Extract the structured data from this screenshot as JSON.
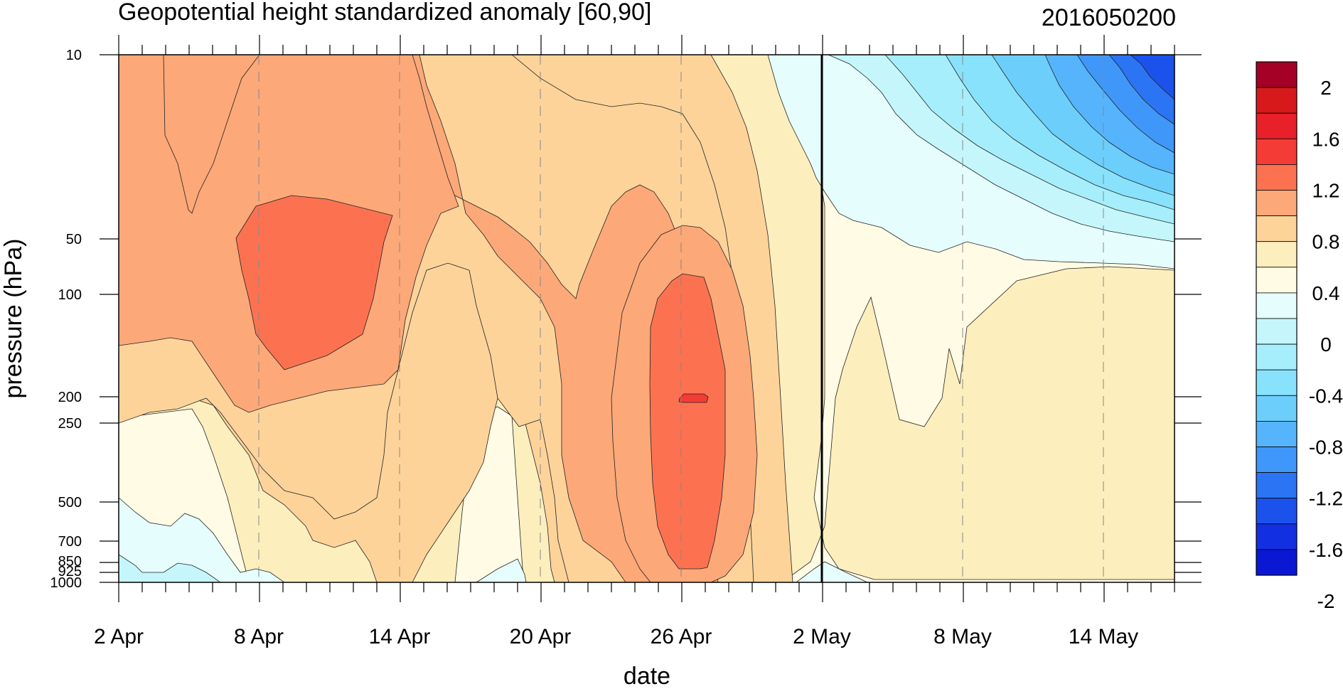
{
  "chart_data": {
    "type": "contour",
    "title": "Geopotential height standardized anomaly [60,90]",
    "subtitle": "2016050200",
    "xlabel": "date",
    "ylabel": "pressure (hPa)",
    "x_ticks": [
      "2 Apr",
      "8 Apr",
      "14 Apr",
      "20 Apr",
      "26 Apr",
      "2 May",
      "8 May",
      "14 May"
    ],
    "y_ticks": [
      {
        "label": "10",
        "value": 10
      },
      {
        "label": "50",
        "value": 50
      },
      {
        "label": "100",
        "value": 100
      },
      {
        "label": "200",
        "value": 200
      },
      {
        "label": "250",
        "value": 250
      },
      {
        "label": "500",
        "value": 500
      },
      {
        "label": "700",
        "value": 700
      },
      {
        "label": "850",
        "value": 850
      },
      {
        "label": "925",
        "value": 925
      },
      {
        "label": "1000",
        "value": 1000
      }
    ],
    "y_scale": "log",
    "y_inverted": true,
    "x_range_days": [
      0,
      45
    ],
    "vertical_marker_date": "2 May",
    "levels": [
      -2,
      -1.8,
      -1.6,
      -1.4,
      -1.2,
      -1.0,
      -0.8,
      -0.6,
      -0.4,
      -0.2,
      0,
      0.2,
      0.4,
      0.6,
      0.8,
      1.0,
      1.2,
      1.4,
      1.6,
      1.8,
      2
    ],
    "colorbar": {
      "labels": [
        "2",
        "1.6",
        "1.2",
        "0.8",
        "0.4",
        "0",
        "-0.4",
        "-0.8",
        "-1.2",
        "-1.6",
        "-2"
      ],
      "colors_top_to_bottom": [
        "#a50026",
        "#d7191c",
        "#e8202a",
        "#f43b36",
        "#fc7251",
        "#fca878",
        "#fdd39a",
        "#fdeebe",
        "#fffbe5",
        "#e5fdfd",
        "#c5f6fb",
        "#a6eefb",
        "#88e2fb",
        "#6ccefb",
        "#55b4fb",
        "#3f97f9",
        "#2b74f3",
        "#1b52ec",
        "#1230e2",
        "#0a18d4"
      ]
    },
    "regions": [
      {
        "level": 0.6,
        "color": "#fdd39a",
        "note": "broad positive anomaly early April, 10-250 hPa"
      },
      {
        "level": 1.0,
        "color": "#fca878",
        "note": "10-200 hPa, 2-16 Apr"
      },
      {
        "level": 1.2,
        "color": "#fc7251",
        "max_center": "10 Apr 70 hPa"
      },
      {
        "level": 1.2,
        "color": "#fc7251",
        "max_center": "26 Apr 200 hPa"
      },
      {
        "level": 1.4,
        "color": "#f43b36",
        "note": "small core at 26 Apr 200 hPa"
      },
      {
        "level": -1.8,
        "color": "#1b52ec",
        "note": "upper stratosphere mid May"
      }
    ]
  }
}
